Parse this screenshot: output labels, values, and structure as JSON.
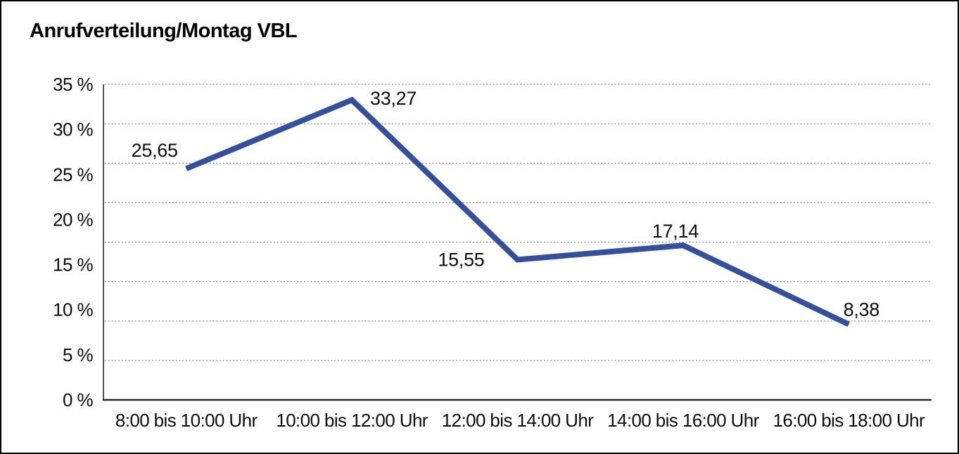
{
  "window": {
    "background": "#ffffff",
    "frame_border_color": "#000000"
  },
  "chart_data": {
    "type": "line",
    "title": "Anrufverteilung/Montag VBL",
    "categories": [
      "8:00 bis 10:00 Uhr",
      "10:00 bis 12:00 Uhr",
      "12:00 bis 14:00 Uhr",
      "14:00 bis 16:00 Uhr",
      "16:00 bis 18:00 Uhr"
    ],
    "values": [
      25.65,
      33.27,
      15.55,
      17.14,
      8.38
    ],
    "value_labels": [
      "25,65",
      "33,27",
      "15,55",
      "17,14",
      "8,38"
    ],
    "xlabel": "",
    "ylabel": "",
    "y_axis": {
      "min": 0,
      "max": 35,
      "tick_step": 5,
      "tick_labels": [
        "0 %",
        "5 %",
        "10 %",
        "15 %",
        "20 %",
        "25 %",
        "30 %",
        "35 %"
      ]
    },
    "ylim": [
      0,
      35
    ],
    "grid": {
      "style": "dotted",
      "horizontal_divisions": 8,
      "color": "#6e6e6e"
    },
    "legend": "none",
    "line_color": "#34509d",
    "axis_color": "#2b2b2b",
    "text_color": "#0d0d0d"
  }
}
